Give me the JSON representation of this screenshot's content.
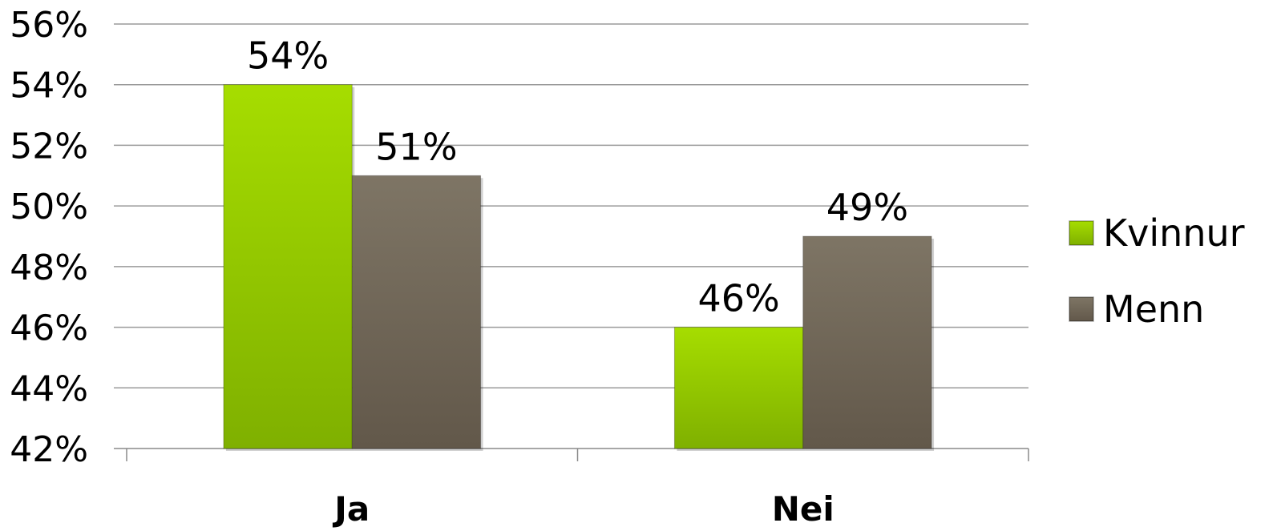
{
  "chart_data": {
    "type": "bar",
    "categories": [
      "Ja",
      "Nei"
    ],
    "series": [
      {
        "name": "Kvinnur",
        "values": [
          54,
          46
        ],
        "labels": [
          "54%",
          "46%"
        ],
        "color": "#8cc000"
      },
      {
        "name": "Menn",
        "values": [
          51,
          49
        ],
        "labels": [
          "51%",
          "49%"
        ],
        "color": "#726756"
      }
    ],
    "ylim": [
      42,
      56
    ],
    "yticks": [
      42,
      44,
      46,
      48,
      50,
      52,
      54,
      56
    ],
    "ytick_labels": [
      "42%",
      "44%",
      "46%",
      "48%",
      "50%",
      "52%",
      "54%",
      "56%"
    ],
    "grid": true,
    "legend_position": "right"
  }
}
